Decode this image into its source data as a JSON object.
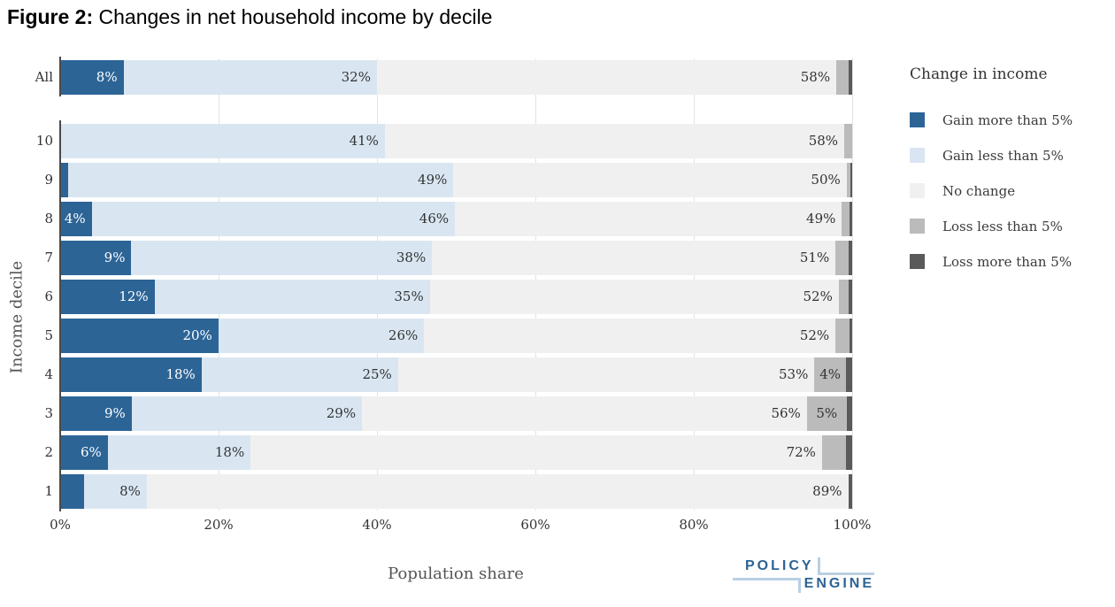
{
  "title": {
    "prefix": "Figure 2:",
    "text": " Changes in net household income by decile"
  },
  "chart_data": {
    "type": "bar",
    "orientation": "horizontal",
    "stacked": true,
    "title": "Figure 2: Changes in net household income by decile",
    "xlabel": "Population share",
    "ylabel": "Income decile",
    "xlim": [
      0,
      100
    ],
    "x_ticks": [
      "0%",
      "20%",
      "40%",
      "60%",
      "80%",
      "100%"
    ],
    "grid": "vertical",
    "legend_title": "Change in income",
    "legend_position": "right",
    "series": [
      {
        "name": "Gain more than 5%",
        "color": "#2C6496"
      },
      {
        "name": "Gain less than 5%",
        "color": "#D9E6F2"
      },
      {
        "name": "No change",
        "color": "#F0F0F0"
      },
      {
        "name": "Loss less than 5%",
        "color": "#BBBBBB"
      },
      {
        "name": "Loss more than 5%",
        "color": "#5A5A5A"
      }
    ],
    "rows": [
      {
        "label": "All",
        "values": [
          8,
          32,
          58,
          1.5,
          0.5
        ],
        "labels": [
          "8%",
          "32%",
          "58%",
          "",
          ""
        ]
      },
      {
        "label": "10",
        "values": [
          0,
          41,
          58,
          1,
          0
        ],
        "labels": [
          "",
          "41%",
          "58%",
          "",
          ""
        ]
      },
      {
        "label": "9",
        "values": [
          1,
          49,
          50,
          0.5,
          0.2
        ],
        "labels": [
          "",
          "49%",
          "50%",
          "",
          ""
        ]
      },
      {
        "label": "8",
        "values": [
          4,
          46,
          49,
          1,
          0.3
        ],
        "labels": [
          "4%",
          "46%",
          "49%",
          "",
          ""
        ]
      },
      {
        "label": "7",
        "values": [
          9,
          38,
          51,
          1.7,
          0.4
        ],
        "labels": [
          "9%",
          "38%",
          "51%",
          "",
          ""
        ]
      },
      {
        "label": "6",
        "values": [
          12,
          35,
          52,
          1.3,
          0.4
        ],
        "labels": [
          "12%",
          "35%",
          "52%",
          "",
          ""
        ]
      },
      {
        "label": "5",
        "values": [
          20,
          26,
          52,
          1.8,
          0.3
        ],
        "labels": [
          "20%",
          "26%",
          "52%",
          "",
          ""
        ]
      },
      {
        "label": "4",
        "values": [
          18,
          25,
          53,
          4,
          0.8
        ],
        "labels": [
          "18%",
          "25%",
          "53%",
          "4%",
          ""
        ]
      },
      {
        "label": "3",
        "values": [
          9,
          29,
          56,
          5,
          0.7
        ],
        "labels": [
          "9%",
          "29%",
          "56%",
          "5%",
          ""
        ]
      },
      {
        "label": "2",
        "values": [
          6,
          18,
          72,
          3,
          0.8
        ],
        "labels": [
          "6%",
          "18%",
          "72%",
          "",
          ""
        ]
      },
      {
        "label": "1",
        "values": [
          3,
          8,
          89,
          0,
          0.5
        ],
        "labels": [
          "",
          "8%",
          "89%",
          "",
          ""
        ]
      }
    ]
  },
  "logo": {
    "top": "POLICY",
    "bottom": "ENGINE"
  }
}
